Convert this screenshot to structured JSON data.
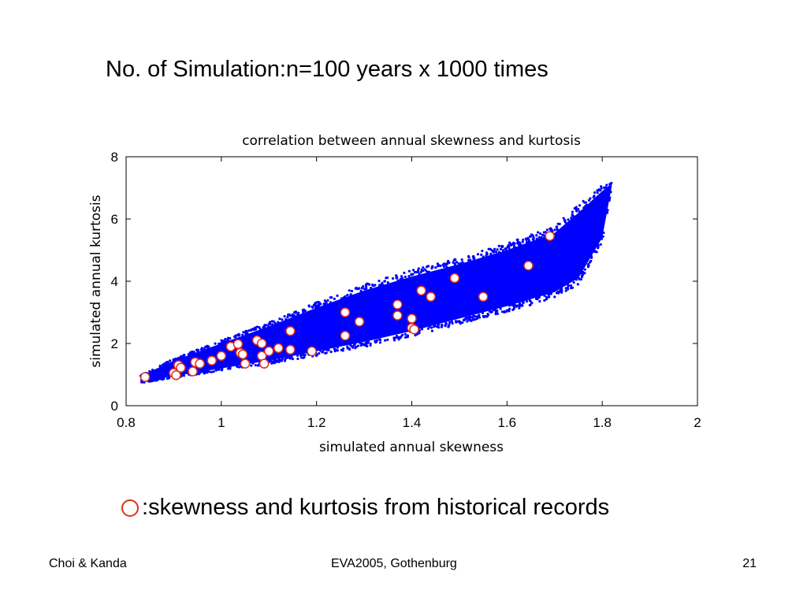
{
  "heading": {
    "prefix": "No. of Simulation",
    "colon": ":",
    "suffix": "n=100 years x 1000 times"
  },
  "legend": {
    "colon": ":",
    "text": "skewness and kurtosis from historical records",
    "marker_color": "#e0301e"
  },
  "footer": {
    "left": "Choi & Kanda",
    "center": "EVA2005, Gothenburg",
    "right": "21"
  },
  "chart_data": {
    "type": "scatter",
    "title": "correlation between annual skewness and kurtosis",
    "xlabel": "simulated annual skewness",
    "ylabel": "simulated annual kurtosis",
    "xlim": [
      0.8,
      2
    ],
    "ylim": [
      0,
      8
    ],
    "xticks": [
      "0.8",
      "1",
      "1.2",
      "1.4",
      "1.6",
      "1.8",
      "2"
    ],
    "yticks": [
      "0",
      "2",
      "4",
      "6",
      "8"
    ],
    "grid": false,
    "colors": {
      "simulated": "#0000ff",
      "historical_edge": "#e0301e",
      "historical_fill": "#ffffff"
    },
    "series": [
      {
        "id": "simulated",
        "marker": "dot",
        "band": {
          "x": [
            0.83,
            0.9,
            1.0,
            1.1,
            1.2,
            1.3,
            1.4,
            1.5,
            1.6,
            1.7,
            1.75,
            1.8,
            1.82
          ],
          "lower": [
            0.75,
            0.95,
            1.2,
            1.45,
            1.75,
            2.05,
            2.4,
            2.8,
            3.2,
            3.65,
            4.1,
            5.4,
            7.05
          ],
          "upper": [
            0.95,
            1.45,
            2.0,
            2.55,
            3.15,
            3.7,
            4.15,
            4.55,
            5.0,
            5.55,
            6.2,
            6.9,
            7.15
          ]
        }
      },
      {
        "id": "historical",
        "marker": "open-circle",
        "points": [
          [
            0.84,
            0.92
          ],
          [
            0.9,
            1.05
          ],
          [
            0.905,
            0.98
          ],
          [
            0.91,
            1.3
          ],
          [
            0.915,
            1.22
          ],
          [
            0.94,
            1.1
          ],
          [
            0.945,
            1.4
          ],
          [
            0.955,
            1.35
          ],
          [
            0.98,
            1.45
          ],
          [
            1.0,
            1.6
          ],
          [
            1.02,
            1.9
          ],
          [
            1.035,
            1.98
          ],
          [
            1.04,
            1.7
          ],
          [
            1.045,
            1.65
          ],
          [
            1.05,
            1.35
          ],
          [
            1.075,
            2.1
          ],
          [
            1.085,
            2.0
          ],
          [
            1.085,
            1.6
          ],
          [
            1.09,
            1.35
          ],
          [
            1.1,
            1.75
          ],
          [
            1.12,
            1.85
          ],
          [
            1.145,
            2.4
          ],
          [
            1.145,
            1.8
          ],
          [
            1.19,
            1.75
          ],
          [
            1.26,
            3.0
          ],
          [
            1.26,
            2.25
          ],
          [
            1.29,
            2.7
          ],
          [
            1.37,
            3.25
          ],
          [
            1.37,
            2.9
          ],
          [
            1.4,
            2.8
          ],
          [
            1.4,
            2.5
          ],
          [
            1.405,
            2.45
          ],
          [
            1.42,
            3.7
          ],
          [
            1.44,
            3.5
          ],
          [
            1.49,
            4.1
          ],
          [
            1.55,
            3.5
          ],
          [
            1.645,
            4.5
          ],
          [
            1.69,
            5.45
          ]
        ]
      }
    ]
  }
}
